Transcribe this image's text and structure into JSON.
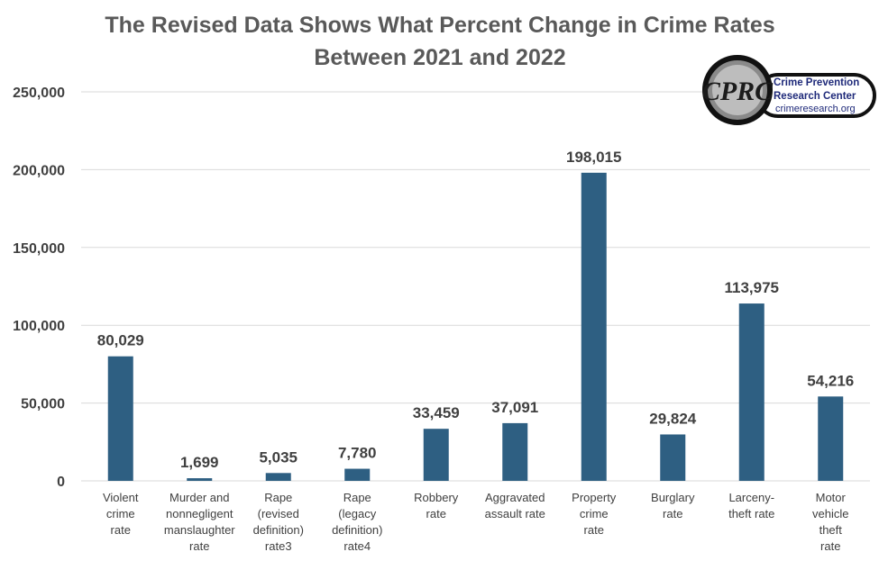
{
  "chart_data": {
    "type": "bar",
    "title_lines": [
      "The Revised Data Shows What Percent Change in Crime Rates",
      "Between 2021 and 2022"
    ],
    "categories": [
      [
        "Violent",
        "crime",
        "rate"
      ],
      [
        "Murder and",
        "nonnegligent",
        "manslaughter",
        "rate"
      ],
      [
        "Rape",
        "(revised",
        "definition)",
        "rate3"
      ],
      [
        "Rape",
        "(legacy",
        "definition)",
        "rate4"
      ],
      [
        "Robbery",
        "rate"
      ],
      [
        "Aggravated",
        "assault rate"
      ],
      [
        "Property",
        "crime",
        "rate"
      ],
      [
        "Burglary",
        "rate"
      ],
      [
        "Larceny-",
        "theft rate"
      ],
      [
        "Motor",
        "vehicle",
        "theft",
        "rate"
      ]
    ],
    "values": [
      80029,
      1699,
      5035,
      7780,
      33459,
      37091,
      198015,
      29824,
      113975,
      54216
    ],
    "data_labels": [
      "80,029",
      "1,699",
      "5,035",
      "7,780",
      "33,459",
      "37,091",
      "198,015",
      "29,824",
      "113,975",
      "54,216"
    ],
    "ylim": [
      0,
      250000
    ],
    "yticks": [
      0,
      50000,
      100000,
      150000,
      200000,
      250000
    ],
    "ytick_labels": [
      "0",
      "50,000",
      "100,000",
      "150,000",
      "200,000",
      "250,000"
    ],
    "grid": true,
    "legend": "none",
    "bar_color": "#2e5f82"
  },
  "logo": {
    "monogram": "CPRC",
    "line1": "Crime Prevention",
    "line2": "Research Center",
    "url": "crimeresearch.org"
  }
}
